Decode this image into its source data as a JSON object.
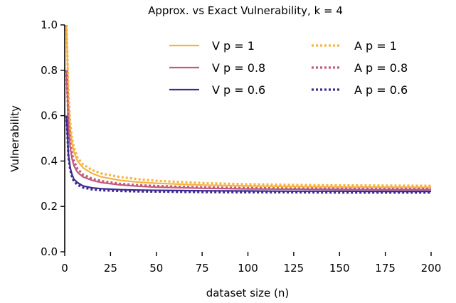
{
  "chart_data": {
    "type": "line",
    "title": "Approx. vs Exact Vulnerability, k = 4",
    "xlabel": "dataset size (n)",
    "ylabel": "Vulnerability",
    "xlim": [
      0,
      200
    ],
    "ylim": [
      0,
      1.0
    ],
    "xticks": [
      0,
      25,
      50,
      75,
      100,
      125,
      150,
      175,
      200
    ],
    "xtick_labels": [
      "0",
      "25",
      "50",
      "75",
      "100",
      "125",
      "150",
      "175",
      "200"
    ],
    "yticks": [
      0,
      0.2,
      0.4,
      0.6,
      0.8,
      1.0
    ],
    "ytick_labels": [
      "0.0",
      "0.2",
      "0.4",
      "0.6",
      "0.8",
      "1.0"
    ],
    "grid": false,
    "legend_position": "top-right",
    "series": [
      {
        "name": "V p = 1",
        "style": "solid",
        "color": "#f5b342",
        "x": [
          1,
          2,
          3,
          4,
          5,
          7,
          10,
          15,
          20,
          30,
          40,
          50,
          75,
          100,
          125,
          150,
          175,
          200
        ],
        "y": [
          1.0,
          0.66,
          0.54,
          0.48,
          0.44,
          0.4,
          0.37,
          0.345,
          0.33,
          0.315,
          0.307,
          0.302,
          0.294,
          0.29,
          0.288,
          0.286,
          0.285,
          0.284
        ]
      },
      {
        "name": "V p = 0.8",
        "style": "solid",
        "color": "#c25a7c",
        "x": [
          1,
          2,
          3,
          4,
          5,
          7,
          10,
          15,
          20,
          30,
          40,
          50,
          75,
          100,
          125,
          150,
          175,
          200
        ],
        "y": [
          0.8,
          0.55,
          0.46,
          0.41,
          0.38,
          0.35,
          0.33,
          0.315,
          0.305,
          0.295,
          0.289,
          0.285,
          0.28,
          0.277,
          0.276,
          0.275,
          0.274,
          0.274
        ]
      },
      {
        "name": "V p = 0.6",
        "style": "solid",
        "color": "#3d2a91",
        "x": [
          1,
          2,
          3,
          4,
          5,
          7,
          10,
          15,
          20,
          30,
          40,
          50,
          75,
          100,
          125,
          150,
          175,
          200
        ],
        "y": [
          0.6,
          0.43,
          0.37,
          0.34,
          0.32,
          0.305,
          0.29,
          0.282,
          0.278,
          0.274,
          0.272,
          0.271,
          0.269,
          0.268,
          0.267,
          0.267,
          0.266,
          0.266
        ]
      },
      {
        "name": "A p = 1",
        "style": "dotted",
        "color": "#f5b342",
        "x": [
          1,
          2,
          3,
          4,
          5,
          7,
          10,
          15,
          20,
          30,
          40,
          50,
          75,
          100,
          125,
          150,
          175,
          200
        ],
        "y": [
          1.0,
          0.7,
          0.57,
          0.5,
          0.46,
          0.415,
          0.385,
          0.36,
          0.345,
          0.33,
          0.32,
          0.313,
          0.303,
          0.298,
          0.295,
          0.293,
          0.292,
          0.291
        ]
      },
      {
        "name": "A p = 0.8",
        "style": "dotted",
        "color": "#c25a7c",
        "x": [
          1,
          2,
          3,
          4,
          5,
          7,
          10,
          15,
          20,
          30,
          40,
          50,
          75,
          100,
          125,
          150,
          175,
          200
        ],
        "y": [
          0.8,
          0.58,
          0.48,
          0.43,
          0.4,
          0.365,
          0.34,
          0.322,
          0.312,
          0.3,
          0.294,
          0.29,
          0.284,
          0.281,
          0.279,
          0.278,
          0.277,
          0.277
        ]
      },
      {
        "name": "A p = 0.6",
        "style": "dotted",
        "color": "#3d2a91",
        "x": [
          1,
          2,
          3,
          4,
          5,
          7,
          10,
          15,
          20,
          30,
          40,
          50,
          75,
          100,
          125,
          150,
          175,
          200
        ],
        "y": [
          0.6,
          0.42,
          0.36,
          0.33,
          0.31,
          0.295,
          0.283,
          0.275,
          0.271,
          0.268,
          0.266,
          0.265,
          0.263,
          0.262,
          0.262,
          0.261,
          0.261,
          0.261
        ]
      }
    ]
  }
}
